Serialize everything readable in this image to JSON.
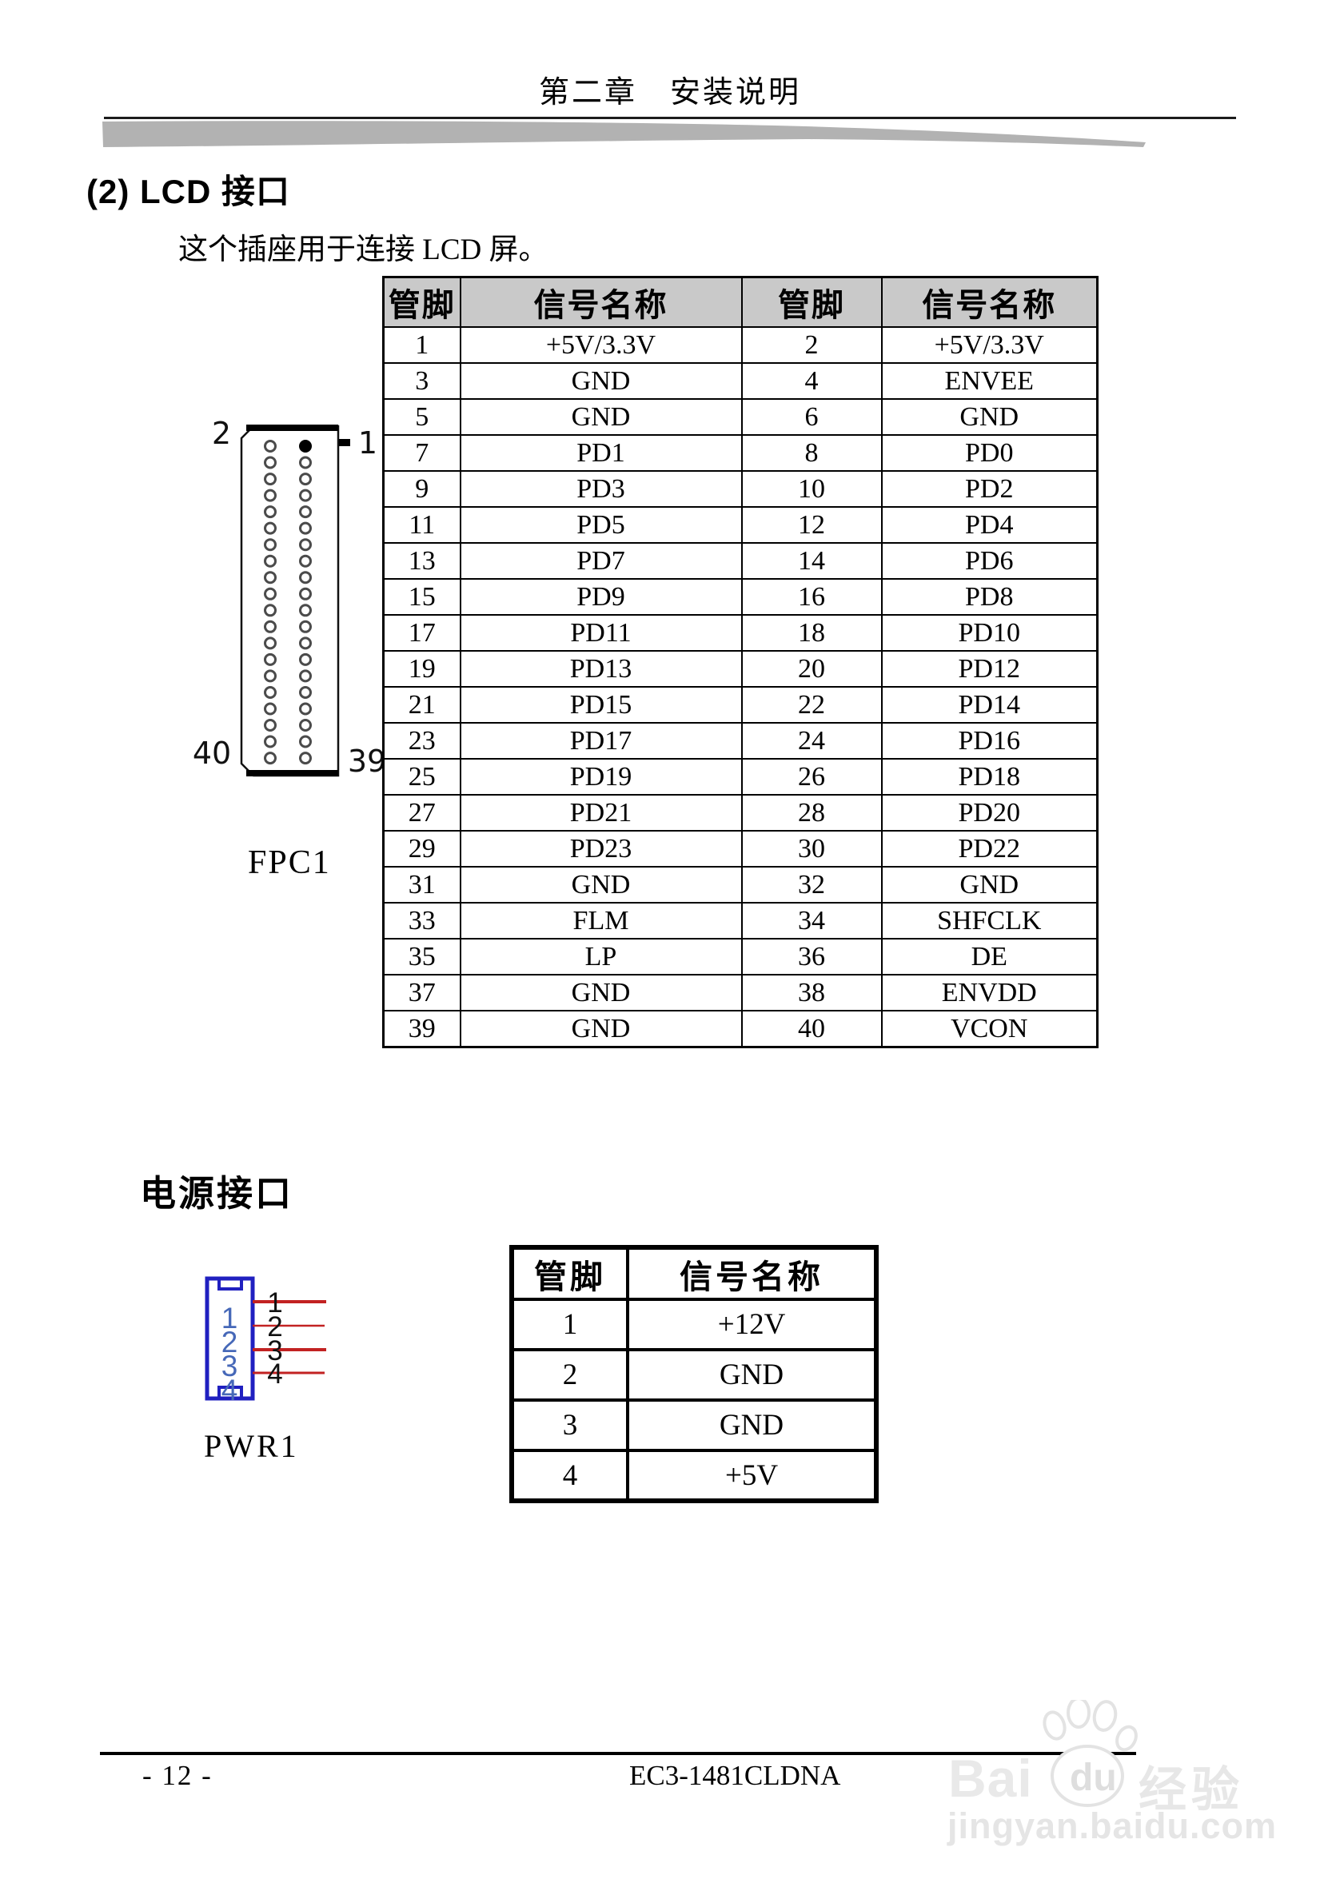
{
  "header": {
    "chapter_title": "第二章　安装说明"
  },
  "lcd_section": {
    "heading": "(2) LCD 接口",
    "description": "这个插座用于连接 LCD 屏。",
    "connector": {
      "label": "FPC1",
      "corner_labels": {
        "top_left": "2",
        "top_right": "1",
        "bottom_left": "40",
        "bottom_right": "39"
      },
      "pins_per_column": 20
    },
    "table": {
      "headers": [
        "管脚",
        "信号名称",
        "管脚",
        "信号名称"
      ],
      "rows": [
        [
          "1",
          "+5V/3.3V",
          "2",
          "+5V/3.3V"
        ],
        [
          "3",
          "GND",
          "4",
          "ENVEE"
        ],
        [
          "5",
          "GND",
          "6",
          "GND"
        ],
        [
          "7",
          "PD1",
          "8",
          "PD0"
        ],
        [
          "9",
          "PD3",
          "10",
          "PD2"
        ],
        [
          "11",
          "PD5",
          "12",
          "PD4"
        ],
        [
          "13",
          "PD7",
          "14",
          "PD6"
        ],
        [
          "15",
          "PD9",
          "16",
          "PD8"
        ],
        [
          "17",
          "PD11",
          "18",
          "PD10"
        ],
        [
          "19",
          "PD13",
          "20",
          "PD12"
        ],
        [
          "21",
          "PD15",
          "22",
          "PD14"
        ],
        [
          "23",
          "PD17",
          "24",
          "PD16"
        ],
        [
          "25",
          "PD19",
          "26",
          "PD18"
        ],
        [
          "27",
          "PD21",
          "28",
          "PD20"
        ],
        [
          "29",
          "PD23",
          "30",
          "PD22"
        ],
        [
          "31",
          "GND",
          "32",
          "GND"
        ],
        [
          "33",
          "FLM",
          "34",
          "SHFCLK"
        ],
        [
          "35",
          "LP",
          "36",
          "DE"
        ],
        [
          "37",
          "GND",
          "38",
          "ENVDD"
        ],
        [
          "39",
          "GND",
          "40",
          "VCON"
        ]
      ]
    }
  },
  "power_section": {
    "heading": "电源接口",
    "connector": {
      "label": "PWR1",
      "pin_labels": [
        "1",
        "2",
        "3",
        "4"
      ],
      "wire_labels": [
        "1",
        "2",
        "3",
        "4"
      ]
    },
    "table": {
      "headers": [
        "管脚",
        "信号名称"
      ],
      "rows": [
        [
          "1",
          "+12V"
        ],
        [
          "2",
          "GND"
        ],
        [
          "3",
          "GND"
        ],
        [
          "4",
          "+5V"
        ]
      ]
    }
  },
  "footer": {
    "page_number": "- 12 -",
    "doc_code": "EC3-1481CLDNA"
  },
  "watermark": {
    "brand": "Bai",
    "du": "du",
    "suffix": "经验",
    "url": "jingyan.baidu.com"
  },
  "colors": {
    "table_header_bg": "#c9c9c9",
    "connector_blue": "#2020c0",
    "pin_digit_blue": "#4668b8",
    "wire_red": "#c22222",
    "swoosh_gray": "#b2b2b2",
    "watermark_gray": "#e7e7e7"
  }
}
